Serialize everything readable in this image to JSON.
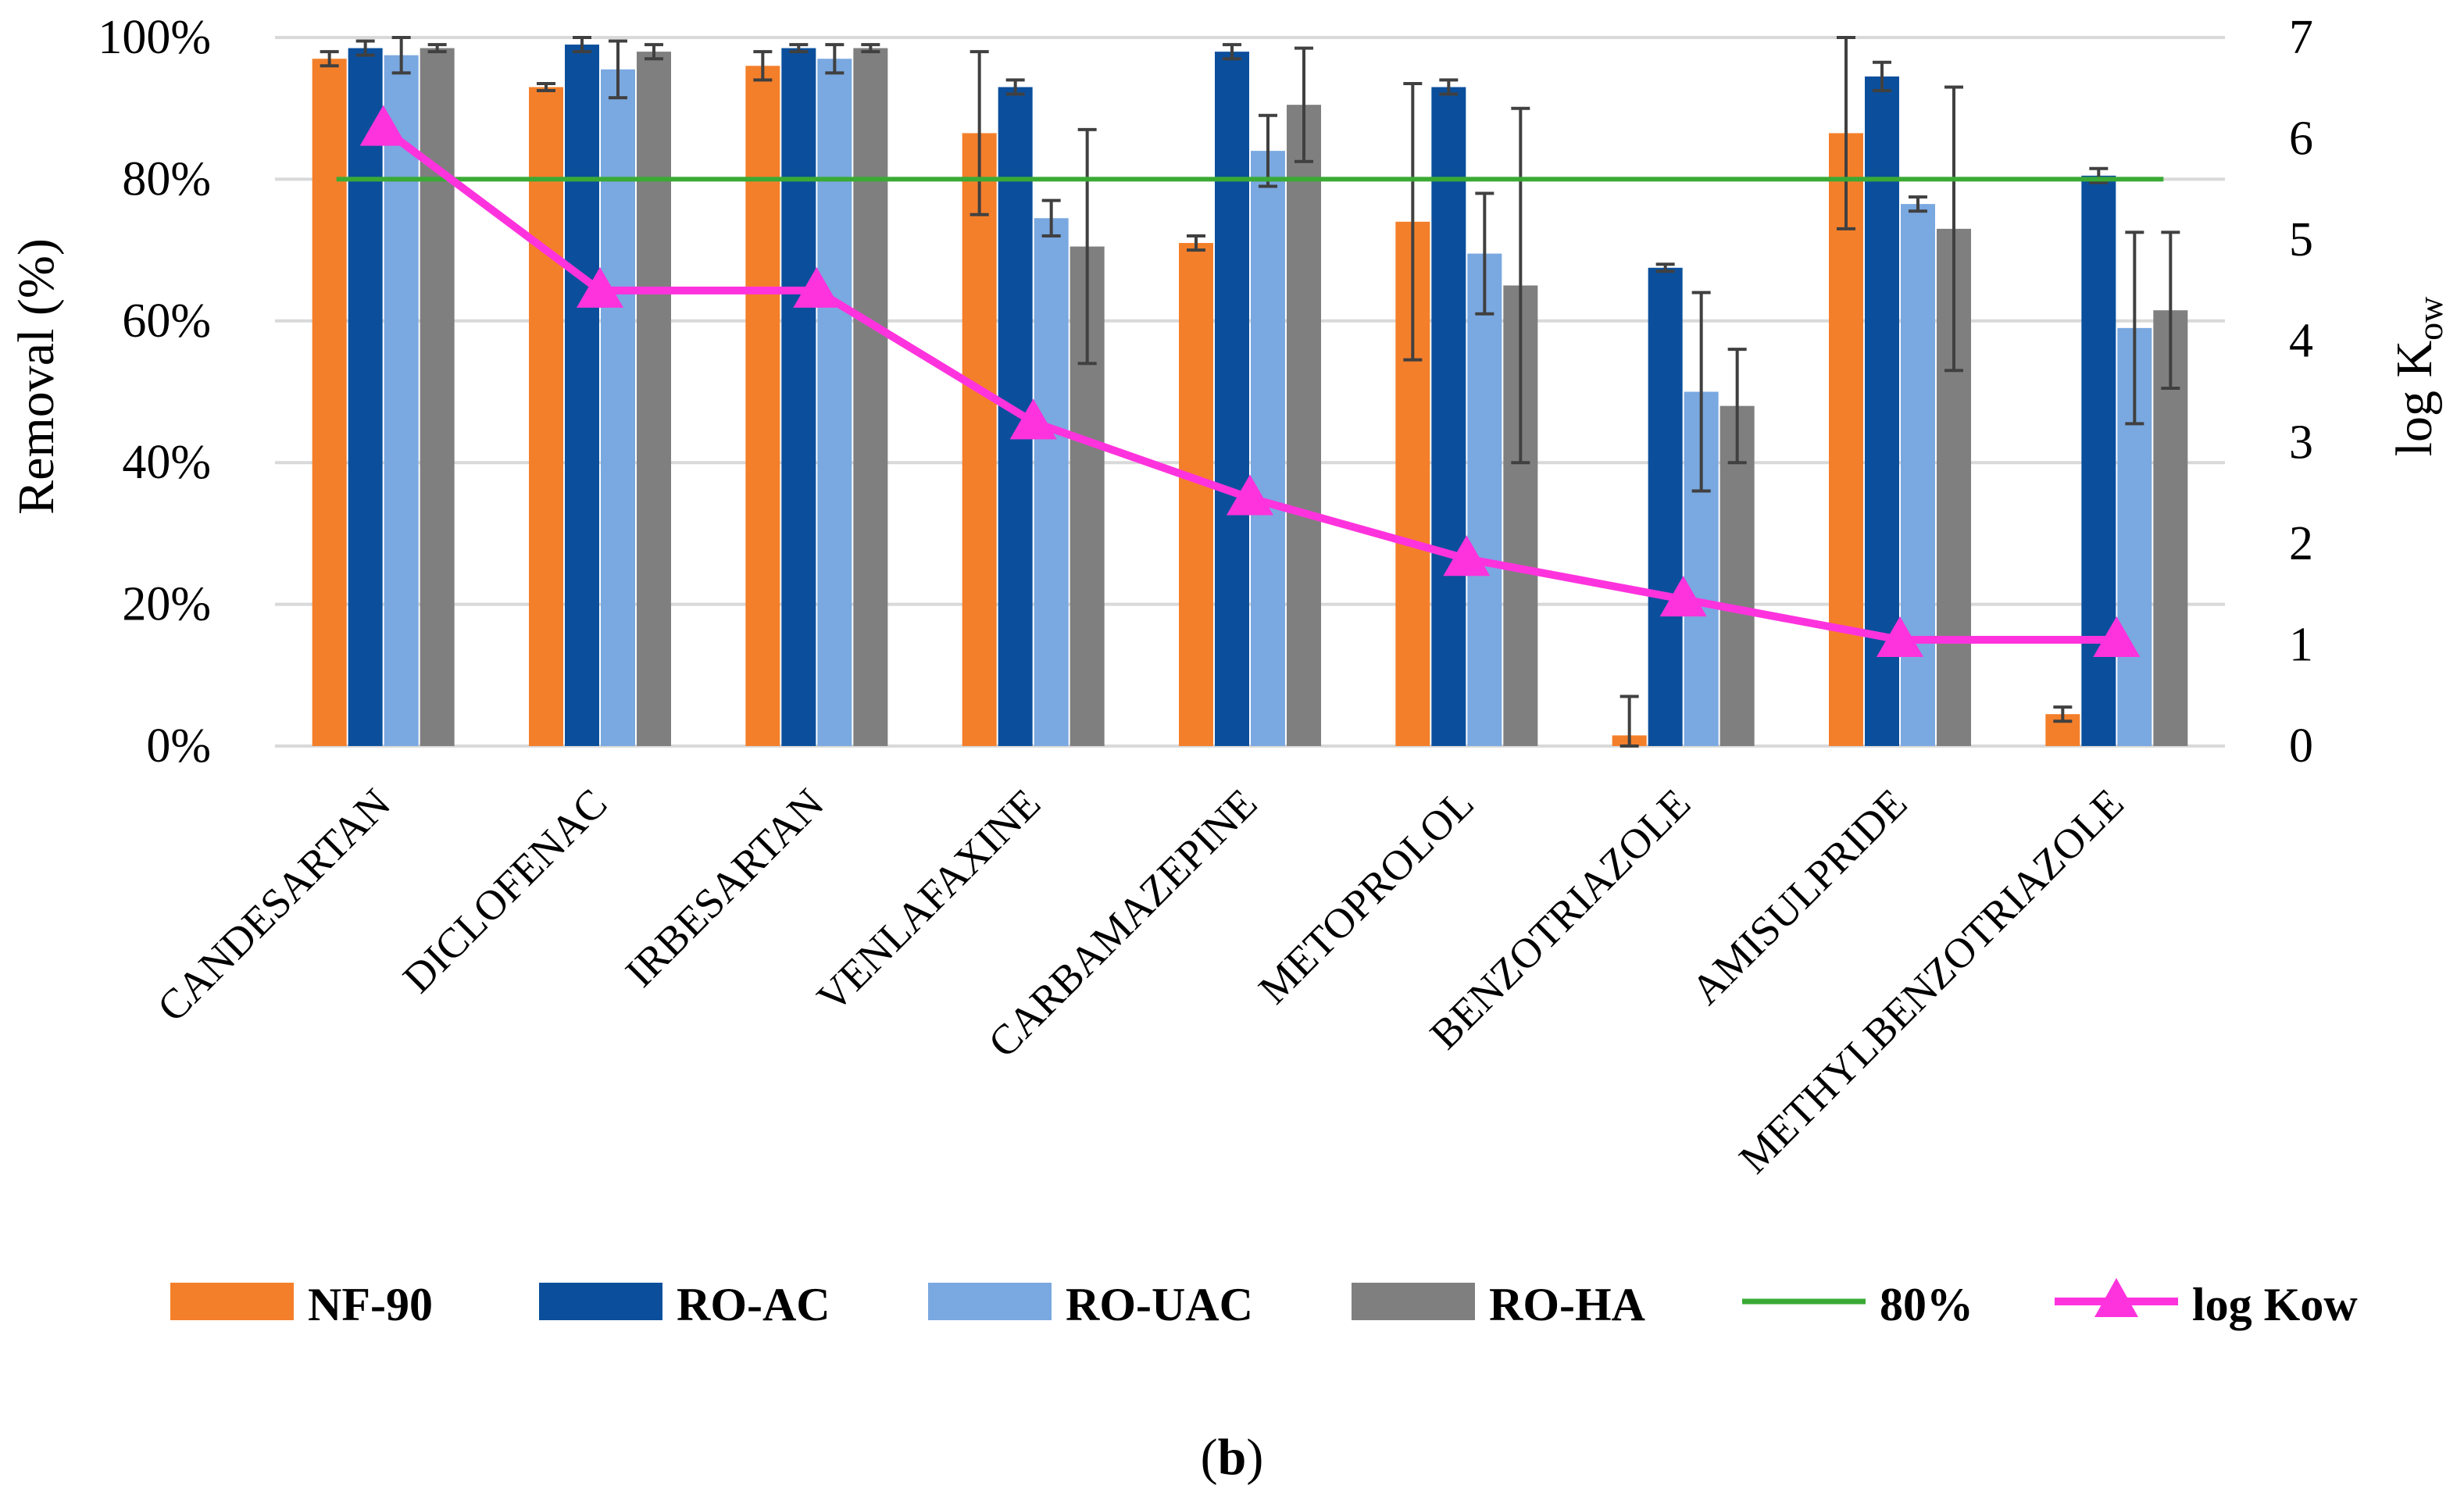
{
  "chart_data": {
    "type": "bar",
    "categories": [
      "CANDESARTAN",
      "DICLOFENAC",
      "IRBESARTAN",
      "VENLAFAXINE",
      "CARBAMAZEPINE",
      "METOPROLOL",
      "BENZOTRIAZOLE",
      "AMISULPRIDE",
      "METHYLBENZOTRIAZOLE"
    ],
    "series": [
      {
        "name": "NF-90",
        "color": "#f47f2a",
        "values": [
          97,
          93,
          96,
          86.5,
          71,
          74,
          1.5,
          86.5,
          4.5
        ],
        "errors": [
          1,
          0.5,
          2,
          11.5,
          1,
          19.5,
          5.5,
          13.5,
          1
        ]
      },
      {
        "name": "RO-AC",
        "color": "#0b4f9c",
        "values": [
          98.5,
          99,
          98.5,
          93,
          98,
          93,
          67.5,
          94.5,
          80.5
        ],
        "errors": [
          1,
          1,
          0.5,
          1,
          1,
          1,
          0.5,
          2,
          1
        ]
      },
      {
        "name": "RO-UAC",
        "color": "#7aa8e0",
        "values": [
          97.5,
          95.5,
          97,
          74.5,
          84,
          69.5,
          50,
          76.5,
          59
        ],
        "errors": [
          2.5,
          4,
          2,
          2.5,
          5,
          8.5,
          14,
          1,
          13.5
        ]
      },
      {
        "name": "RO-HA",
        "color": "#7f7f7f",
        "values": [
          98.5,
          98,
          98.5,
          70.5,
          90.5,
          65,
          48,
          73,
          61.5
        ],
        "errors": [
          0.5,
          1,
          0.5,
          16.5,
          8,
          25,
          8,
          20,
          11
        ]
      }
    ],
    "lines": [
      {
        "name": "80%",
        "color": "#3aaa35",
        "axis": "left",
        "values": [
          80,
          80,
          80,
          80,
          80,
          80,
          80,
          80,
          80
        ]
      },
      {
        "name": "log Kow",
        "color": "#ff33dd",
        "axis": "right",
        "marker": "triangle",
        "values": [
          6.1,
          4.5,
          4.5,
          3.2,
          2.45,
          1.85,
          1.45,
          1.05,
          1.05
        ]
      }
    ],
    "ylabel": "Removal (%)",
    "ylim": [
      0,
      100
    ],
    "yticks": [
      "0%",
      "20%",
      "40%",
      "60%",
      "80%",
      "100%"
    ],
    "y2label_main": "log K",
    "y2label_sub": "ow",
    "y2lim": [
      0,
      7
    ],
    "y2ticks": [
      "0",
      "1",
      "2",
      "3",
      "4",
      "5",
      "6",
      "7"
    ],
    "legend_position": "bottom",
    "grid": true,
    "panel_caption_open": "(",
    "panel_caption_letter": "b",
    "panel_caption_close": ")"
  }
}
